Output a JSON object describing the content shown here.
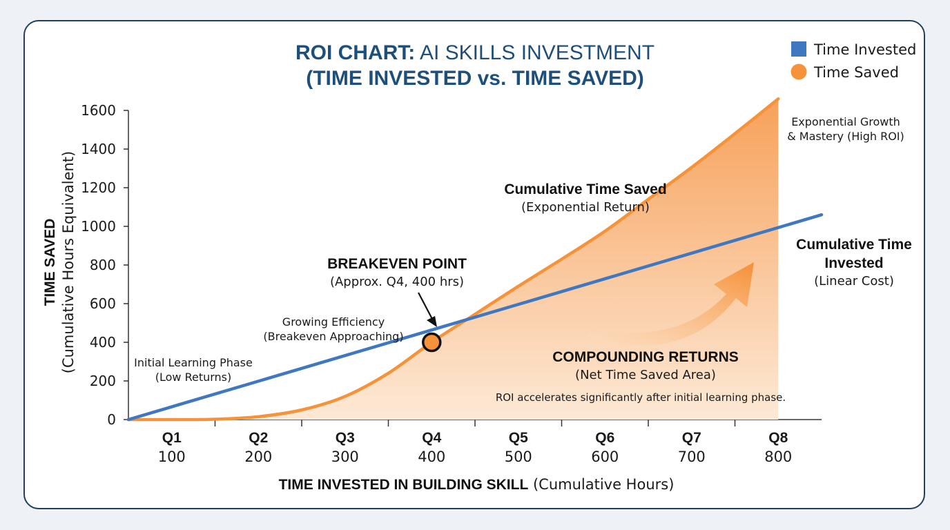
{
  "colors": {
    "invested": "#3f78c0",
    "saved": "#f5923a",
    "area_top": "#f7a15a",
    "area_bottom": "#fde9d6",
    "title": "#1d4f7c"
  },
  "chart_data": {
    "type": "line",
    "title": {
      "line1_bold": "ROI CHART:",
      "line1_regular": " AI SKILLS INVESTMENT",
      "line2": "(TIME INVESTED vs. TIME SAVED)"
    },
    "xlabel": {
      "bold": "TIME INVESTED IN BUILDING SKILL",
      "regular": " (Cumulative Hours)"
    },
    "ylabel": {
      "bold": "TIME SAVED",
      "regular": "(Cumulative Hours Equivalent)"
    },
    "x_ticks": [
      {
        "quarter": "Q1",
        "hours": "100"
      },
      {
        "quarter": "Q2",
        "hours": "200"
      },
      {
        "quarter": "Q3",
        "hours": "300"
      },
      {
        "quarter": "Q4",
        "hours": "400"
      },
      {
        "quarter": "Q5",
        "hours": "500"
      },
      {
        "quarter": "Q6",
        "hours": "600"
      },
      {
        "quarter": "Q7",
        "hours": "700"
      },
      {
        "quarter": "Q8",
        "hours": "800"
      }
    ],
    "y_ticks": [
      0,
      200,
      400,
      600,
      800,
      1000,
      1200,
      1400,
      1600
    ],
    "xlim": [
      50,
      850
    ],
    "ylim": [
      0,
      1600
    ],
    "grid": false,
    "legend": {
      "position": "top-right",
      "items": [
        "Time Invested",
        "Time Saved"
      ]
    },
    "series": [
      {
        "name": "Time Invested",
        "style": "line",
        "x": [
          50,
          850
        ],
        "y": [
          0,
          1060
        ]
      },
      {
        "name": "Time Saved",
        "style": "area",
        "x": [
          50,
          100,
          150,
          200,
          250,
          300,
          350,
          400,
          450,
          500,
          550,
          600,
          650,
          700,
          750,
          800
        ],
        "y": [
          0,
          0,
          2,
          15,
          50,
          120,
          240,
          400,
          545,
          690,
          830,
          975,
          1140,
          1305,
          1480,
          1660
        ]
      }
    ],
    "breakeven": {
      "x": 400,
      "y": 400
    },
    "annotations": {
      "initial": [
        "Initial Learning Phase",
        "(Low Returns)"
      ],
      "growing": [
        "Growing Efficiency",
        "(Breakeven Approaching)"
      ],
      "breakeven_title": "BREAKEVEN POINT",
      "breakeven_sub": "(Approx. Q4, 400 hrs)",
      "saved_title": "Cumulative Time Saved",
      "saved_sub": "(Exponential Return)",
      "invested_title_1": "Cumulative Time",
      "invested_title_2": "Invested",
      "invested_sub": "(Linear Cost)",
      "expo_1": "Exponential Growth",
      "expo_2": "& Mastery (High ROI)",
      "compound_title": "COMPOUNDING RETURNS",
      "compound_sub": "(Net Time Saved Area)",
      "roi_note": "ROI accelerates significantly after initial learning phase."
    }
  }
}
